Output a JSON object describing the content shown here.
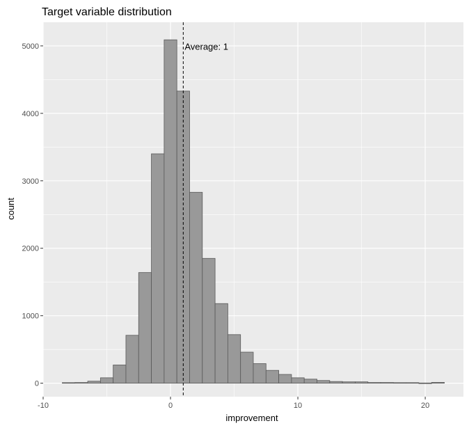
{
  "chart_data": {
    "type": "bar",
    "title": "Target variable distribution",
    "xlabel": "improvement",
    "ylabel": "count",
    "xlim": [
      -10,
      23
    ],
    "ylim": [
      -200,
      5350
    ],
    "x_ticks": [
      -10,
      0,
      10,
      20
    ],
    "y_ticks": [
      0,
      1000,
      2000,
      3000,
      4000,
      5000
    ],
    "bin_width": 1,
    "bins": [
      {
        "x": -8,
        "count": 8
      },
      {
        "x": -7,
        "count": 10
      },
      {
        "x": -6,
        "count": 30
      },
      {
        "x": -5,
        "count": 80
      },
      {
        "x": -4,
        "count": 270
      },
      {
        "x": -3,
        "count": 710
      },
      {
        "x": -2,
        "count": 1640
      },
      {
        "x": -1,
        "count": 3400
      },
      {
        "x": 0,
        "count": 5090
      },
      {
        "x": 1,
        "count": 4330
      },
      {
        "x": 2,
        "count": 2830
      },
      {
        "x": 3,
        "count": 1850
      },
      {
        "x": 4,
        "count": 1180
      },
      {
        "x": 5,
        "count": 720
      },
      {
        "x": 6,
        "count": 460
      },
      {
        "x": 7,
        "count": 290
      },
      {
        "x": 8,
        "count": 190
      },
      {
        "x": 9,
        "count": 130
      },
      {
        "x": 10,
        "count": 80
      },
      {
        "x": 11,
        "count": 60
      },
      {
        "x": 12,
        "count": 40
      },
      {
        "x": 13,
        "count": 25
      },
      {
        "x": 14,
        "count": 20
      },
      {
        "x": 15,
        "count": 20
      },
      {
        "x": 16,
        "count": 10
      },
      {
        "x": 17,
        "count": 10
      },
      {
        "x": 18,
        "count": 8
      },
      {
        "x": 19,
        "count": 8
      },
      {
        "x": 20,
        "count": 3
      },
      {
        "x": 21,
        "count": 12
      }
    ],
    "vline": {
      "x": 1,
      "label": "Average: 1",
      "style": "dashed"
    },
    "grid": true,
    "colors": {
      "panel": "#ebebeb",
      "grid": "#ffffff",
      "bar_fill": "#999999",
      "bar_stroke": "#595959"
    }
  }
}
